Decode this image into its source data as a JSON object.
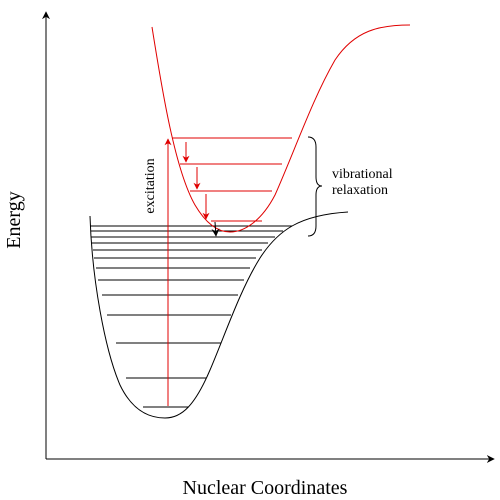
{
  "diagram": {
    "axis_labels": {
      "x": "Nuclear Coordinates",
      "y": "Energy"
    },
    "annotations": {
      "excitation": "excitation",
      "relaxation_line1": "vibrational",
      "relaxation_line2": "relaxation"
    },
    "colors": {
      "ground_state": "#000000",
      "excited_state": "#e00000",
      "axes": "#000000"
    },
    "ground_state_vibrational_levels": 13,
    "excited_state_vibrational_levels": 4
  }
}
